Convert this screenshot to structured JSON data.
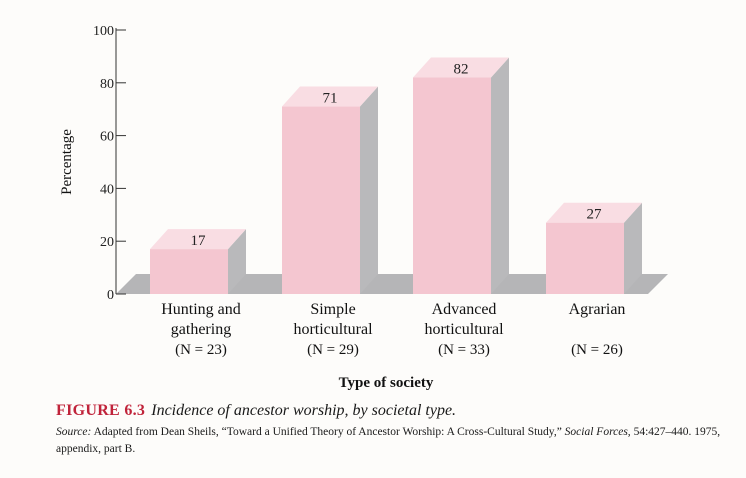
{
  "chart_data": {
    "type": "bar",
    "style": "3d",
    "categories": [
      [
        "Hunting and",
        "gathering"
      ],
      [
        "Simple",
        "horticultural"
      ],
      [
        "Advanced",
        "horticultural"
      ],
      [
        "Agrarian"
      ]
    ],
    "sample_sizes": [
      "(N = 23)",
      "(N = 29)",
      "(N = 33)",
      "(N = 26)"
    ],
    "values": [
      17,
      71,
      82,
      27
    ],
    "data_labels": [
      "17",
      "71",
      "82",
      "27"
    ],
    "ylabel": "Percentage",
    "xlabel": "Type of society",
    "ylim": [
      0,
      100
    ],
    "yticks": [
      "0",
      "20",
      "40",
      "60",
      "80",
      "100"
    ],
    "grid": false,
    "colors": {
      "bar_front": "#f4c6d0",
      "bar_top": "#f9dde3",
      "bar_side": "#b9b9bb",
      "floor": "#b5b5b7"
    }
  },
  "caption": {
    "figure_label": "FIGURE 6.3",
    "figure_title": "Incidence of ancestor worship, by societal type.",
    "source_label": "Source:",
    "source_text": "Adapted from Dean Sheils, “Toward a Unified Theory of Ancestor Worship: A Cross-Cultural Study,”",
    "journal": "Social Forces,",
    "source_tail": "54:427–440. 1975, appendix, part B."
  }
}
